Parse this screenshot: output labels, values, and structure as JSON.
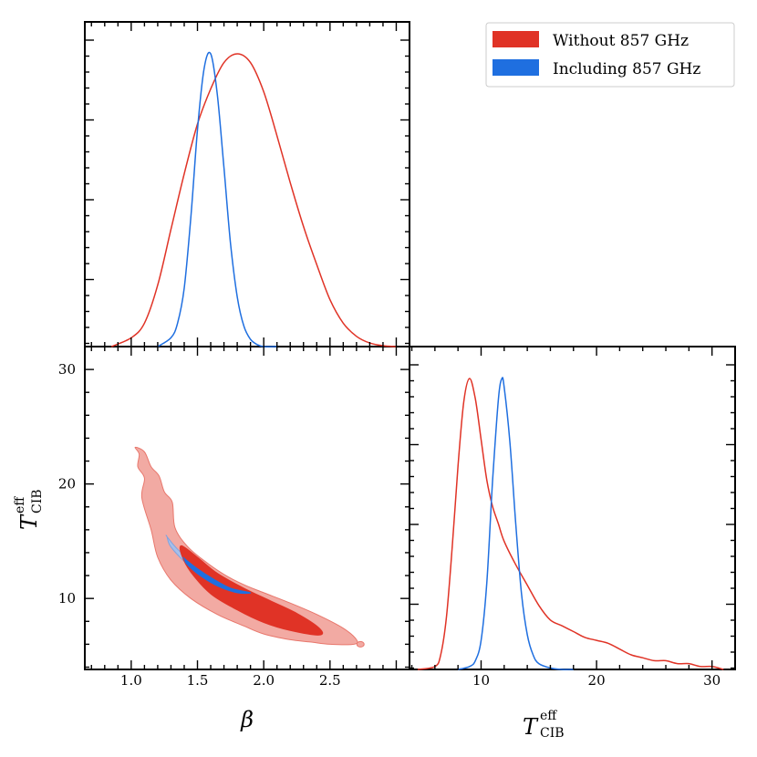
{
  "chart_data": {
    "type": "triangle-plot",
    "legend": {
      "placement": "top-right",
      "entries": [
        {
          "label": "Without 857 GHz",
          "color": "#e03326"
        },
        {
          "label": "Including 857 GHz",
          "color": "#1f6fe0"
        }
      ]
    },
    "params": {
      "beta": {
        "label": "β",
        "lim": [
          0.65,
          3.1
        ],
        "ticks": [
          1.0,
          1.5,
          2.0,
          2.5
        ],
        "tick_labels": [
          "1.0",
          "1.5",
          "2.0",
          "2.5"
        ]
      },
      "T": {
        "label_main": "T",
        "label_sup": "eff",
        "label_sub": "CIB",
        "lim": [
          3.8,
          32
        ],
        "ticks": [
          10,
          20,
          30
        ],
        "tick_labels": [
          "10",
          "20",
          "30"
        ]
      }
    },
    "marginal_beta": {
      "without": {
        "x": [
          0.85,
          1.0,
          1.1,
          1.2,
          1.3,
          1.4,
          1.5,
          1.6,
          1.7,
          1.8,
          1.9,
          2.0,
          2.1,
          2.2,
          2.3,
          2.4,
          2.5,
          2.6,
          2.7,
          2.8,
          2.9,
          3.0
        ],
        "y": [
          0.0,
          0.03,
          0.08,
          0.21,
          0.4,
          0.59,
          0.76,
          0.88,
          0.97,
          1.0,
          0.97,
          0.87,
          0.72,
          0.56,
          0.41,
          0.28,
          0.16,
          0.08,
          0.035,
          0.012,
          0.003,
          0.0
        ]
      },
      "including": {
        "x": [
          1.2,
          1.3,
          1.35,
          1.4,
          1.45,
          1.5,
          1.55,
          1.6,
          1.65,
          1.7,
          1.75,
          1.8,
          1.85,
          1.9,
          1.95,
          2.0,
          2.1
        ],
        "y": [
          0.0,
          0.03,
          0.08,
          0.2,
          0.44,
          0.74,
          0.95,
          1.0,
          0.86,
          0.61,
          0.35,
          0.17,
          0.07,
          0.025,
          0.007,
          0.0,
          0.0
        ]
      }
    },
    "marginal_T": {
      "without": {
        "x": [
          4.5,
          6.0,
          6.5,
          7.0,
          7.5,
          8.0,
          8.5,
          9.0,
          9.5,
          10.0,
          10.5,
          11.0,
          11.5,
          12,
          13,
          14,
          15,
          16,
          17,
          18,
          19,
          20,
          21,
          22,
          23,
          24,
          25,
          26,
          27,
          28,
          29,
          30,
          31
        ],
        "y": [
          0.0,
          0.01,
          0.05,
          0.18,
          0.42,
          0.7,
          0.92,
          1.0,
          0.93,
          0.79,
          0.65,
          0.56,
          0.5,
          0.44,
          0.36,
          0.29,
          0.22,
          0.17,
          0.15,
          0.13,
          0.11,
          0.1,
          0.09,
          0.07,
          0.05,
          0.04,
          0.03,
          0.03,
          0.02,
          0.02,
          0.01,
          0.01,
          0.0
        ]
      },
      "including": {
        "x": [
          8.0,
          9.0,
          9.5,
          10.0,
          10.5,
          11.0,
          11.5,
          11.8,
          12.0,
          12.5,
          13.0,
          13.5,
          14.0,
          14.5,
          15.0,
          16.0,
          17.0,
          18.0
        ],
        "y": [
          0.0,
          0.01,
          0.03,
          0.1,
          0.3,
          0.65,
          0.93,
          1.0,
          0.97,
          0.78,
          0.5,
          0.26,
          0.12,
          0.05,
          0.02,
          0.005,
          0.0,
          0.0
        ]
      }
    },
    "joint_2d": {
      "without_outer": {
        "beta": [
          1.03,
          1.1,
          1.15,
          1.21,
          1.25,
          1.31,
          1.33,
          1.42,
          1.55,
          1.7,
          1.85,
          2.0,
          2.2,
          2.4,
          2.6,
          2.7,
          2.68,
          2.5,
          2.35,
          2.2,
          2.0,
          1.85,
          1.65,
          1.45,
          1.3,
          1.2,
          1.15,
          1.08,
          1.1,
          1.05,
          1.06
        ],
        "T": [
          23.2,
          22.8,
          21.5,
          20.7,
          19.3,
          18.4,
          16.2,
          14.6,
          13.3,
          12.1,
          11.2,
          10.5,
          9.6,
          8.6,
          7.4,
          6.4,
          6.0,
          6.0,
          6.2,
          6.4,
          6.9,
          7.6,
          8.6,
          10.0,
          11.6,
          13.6,
          16.0,
          18.8,
          20.5,
          21.5,
          22.6
        ]
      },
      "without_inner": {
        "beta": [
          1.38,
          1.5,
          1.65,
          1.85,
          2.05,
          2.25,
          2.42,
          2.42,
          2.2,
          2.0,
          1.8,
          1.6,
          1.45,
          1.38
        ],
        "T": [
          14.6,
          13.6,
          12.2,
          10.9,
          9.8,
          8.7,
          7.4,
          6.8,
          7.2,
          7.9,
          9.0,
          10.4,
          12.3,
          13.8
        ]
      },
      "including_outer": {
        "beta": [
          1.27,
          1.35,
          1.5,
          1.65,
          1.8,
          1.95,
          2.04,
          1.9,
          1.7,
          1.55,
          1.42,
          1.3,
          1.27
        ],
        "T": [
          15.4,
          14.3,
          12.8,
          11.5,
          10.5,
          9.7,
          9.4,
          9.6,
          10.5,
          11.7,
          13.0,
          14.5,
          15.4
        ]
      },
      "including_inner": {
        "beta": [
          1.4,
          1.5,
          1.62,
          1.75,
          1.9,
          1.8,
          1.65,
          1.52,
          1.42,
          1.4
        ],
        "T": [
          13.5,
          12.6,
          11.7,
          10.9,
          10.5,
          10.5,
          11.1,
          12.0,
          13.0,
          13.5
        ]
      },
      "blob": {
        "beta": 2.73,
        "T": 6.0
      }
    }
  }
}
